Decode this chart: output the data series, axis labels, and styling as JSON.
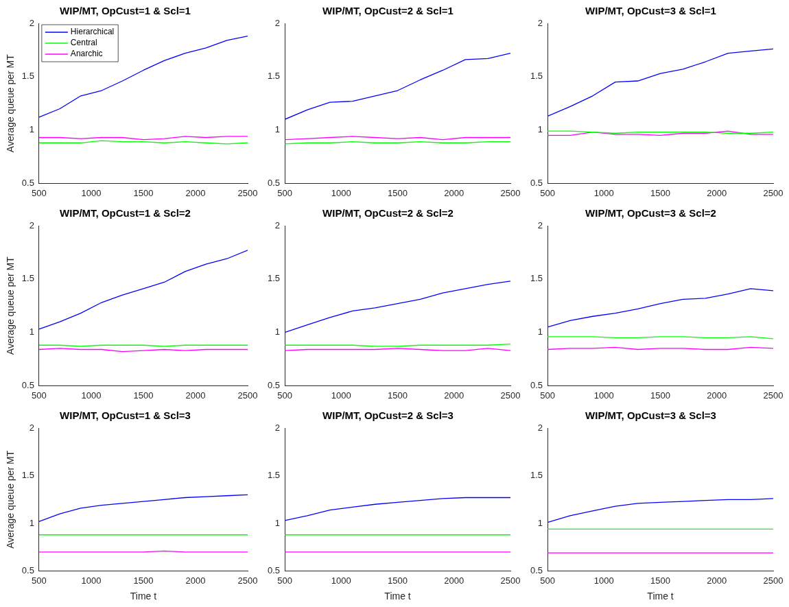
{
  "chart_data": [
    {
      "type": "line",
      "title": "WIP/MT, OpCust=1 & Scl=1",
      "ylabel": "Average queue per MT",
      "x": [
        500,
        700,
        900,
        1100,
        1300,
        1500,
        1700,
        1900,
        2100,
        2300,
        2500
      ],
      "xlim": [
        500,
        2500
      ],
      "xticks": [
        500,
        1000,
        1500,
        2000,
        2500
      ],
      "ylim": [
        0.5,
        2
      ],
      "yticks": [
        0.5,
        1,
        1.5,
        2
      ],
      "legend": "top left",
      "series": [
        {
          "name": "Hierarchical",
          "color": "#0000ff",
          "values": [
            1.12,
            1.2,
            1.32,
            1.37,
            1.46,
            1.56,
            1.65,
            1.72,
            1.77,
            1.84,
            1.88
          ]
        },
        {
          "name": "Central",
          "color": "#00ff00",
          "values": [
            0.88,
            0.88,
            0.88,
            0.9,
            0.89,
            0.89,
            0.88,
            0.89,
            0.88,
            0.87,
            0.88
          ]
        },
        {
          "name": "Anarchic",
          "color": "#ff00ff",
          "values": [
            0.93,
            0.93,
            0.92,
            0.93,
            0.93,
            0.91,
            0.92,
            0.94,
            0.93,
            0.94,
            0.94
          ]
        }
      ]
    },
    {
      "type": "line",
      "title": "WIP/MT, OpCust=2 & Scl=1",
      "x": [
        500,
        700,
        900,
        1100,
        1300,
        1500,
        1700,
        1900,
        2100,
        2300,
        2500
      ],
      "xlim": [
        500,
        2500
      ],
      "xticks": [
        500,
        1000,
        1500,
        2000,
        2500
      ],
      "ylim": [
        0.5,
        2
      ],
      "yticks": [
        0.5,
        1,
        1.5,
        2
      ],
      "series": [
        {
          "color": "#0000ff",
          "values": [
            1.1,
            1.19,
            1.26,
            1.27,
            1.32,
            1.37,
            1.47,
            1.56,
            1.66,
            1.67,
            1.72
          ]
        },
        {
          "color": "#00ff00",
          "values": [
            0.87,
            0.88,
            0.88,
            0.89,
            0.88,
            0.88,
            0.89,
            0.88,
            0.88,
            0.89,
            0.89
          ]
        },
        {
          "color": "#ff00ff",
          "values": [
            0.91,
            0.92,
            0.93,
            0.94,
            0.93,
            0.92,
            0.93,
            0.91,
            0.93,
            0.93,
            0.93
          ]
        }
      ]
    },
    {
      "type": "line",
      "title": "WIP/MT, OpCust=3 & Scl=1",
      "x": [
        500,
        700,
        900,
        1100,
        1300,
        1500,
        1700,
        1900,
        2100,
        2300,
        2500
      ],
      "xlim": [
        500,
        2500
      ],
      "xticks": [
        500,
        1000,
        1500,
        2000,
        2500
      ],
      "ylim": [
        0.5,
        2
      ],
      "yticks": [
        0.5,
        1,
        1.5,
        2
      ],
      "series": [
        {
          "color": "#0000ff",
          "values": [
            1.13,
            1.22,
            1.32,
            1.45,
            1.46,
            1.53,
            1.57,
            1.64,
            1.72,
            1.74,
            1.76
          ]
        },
        {
          "color": "#00ff00",
          "values": [
            0.99,
            0.99,
            0.98,
            0.97,
            0.98,
            0.98,
            0.98,
            0.98,
            0.97,
            0.97,
            0.98
          ]
        },
        {
          "color": "#ff00ff",
          "values": [
            0.95,
            0.95,
            0.98,
            0.96,
            0.96,
            0.95,
            0.97,
            0.97,
            0.99,
            0.96,
            0.96
          ]
        }
      ]
    },
    {
      "type": "line",
      "title": "WIP/MT, OpCust=1 & Scl=2",
      "ylabel": "Average queue per MT",
      "x": [
        500,
        700,
        900,
        1100,
        1300,
        1500,
        1700,
        1900,
        2100,
        2300,
        2500
      ],
      "xlim": [
        500,
        2500
      ],
      "xticks": [
        500,
        1000,
        1500,
        2000,
        2500
      ],
      "ylim": [
        0.5,
        2
      ],
      "yticks": [
        0.5,
        1,
        1.5,
        2
      ],
      "series": [
        {
          "color": "#0000ff",
          "values": [
            1.03,
            1.1,
            1.18,
            1.28,
            1.35,
            1.41,
            1.47,
            1.57,
            1.64,
            1.69,
            1.77
          ]
        },
        {
          "color": "#00ff00",
          "values": [
            0.88,
            0.88,
            0.87,
            0.88,
            0.88,
            0.88,
            0.87,
            0.88,
            0.88,
            0.88,
            0.88
          ]
        },
        {
          "color": "#ff00ff",
          "values": [
            0.84,
            0.85,
            0.84,
            0.84,
            0.82,
            0.83,
            0.84,
            0.83,
            0.84,
            0.84,
            0.84
          ]
        }
      ]
    },
    {
      "type": "line",
      "title": "WIP/MT, OpCust=2 & Scl=2",
      "x": [
        500,
        700,
        900,
        1100,
        1300,
        1500,
        1700,
        1900,
        2100,
        2300,
        2500
      ],
      "xlim": [
        500,
        2500
      ],
      "xticks": [
        500,
        1000,
        1500,
        2000,
        2500
      ],
      "ylim": [
        0.5,
        2
      ],
      "yticks": [
        0.5,
        1,
        1.5,
        2
      ],
      "series": [
        {
          "color": "#0000ff",
          "values": [
            1.0,
            1.07,
            1.14,
            1.2,
            1.23,
            1.27,
            1.31,
            1.37,
            1.41,
            1.45,
            1.48
          ]
        },
        {
          "color": "#00ff00",
          "values": [
            0.88,
            0.88,
            0.88,
            0.88,
            0.87,
            0.87,
            0.88,
            0.88,
            0.88,
            0.88,
            0.89
          ]
        },
        {
          "color": "#ff00ff",
          "values": [
            0.83,
            0.84,
            0.84,
            0.84,
            0.84,
            0.85,
            0.84,
            0.83,
            0.83,
            0.85,
            0.83
          ]
        }
      ]
    },
    {
      "type": "line",
      "title": "WIP/MT, OpCust=3 & Scl=2",
      "x": [
        500,
        700,
        900,
        1100,
        1300,
        1500,
        1700,
        1900,
        2100,
        2300,
        2500
      ],
      "xlim": [
        500,
        2500
      ],
      "xticks": [
        500,
        1000,
        1500,
        2000,
        2500
      ],
      "ylim": [
        0.5,
        2
      ],
      "yticks": [
        0.5,
        1,
        1.5,
        2
      ],
      "series": [
        {
          "color": "#0000ff",
          "values": [
            1.05,
            1.11,
            1.15,
            1.18,
            1.22,
            1.27,
            1.31,
            1.32,
            1.36,
            1.41,
            1.39
          ]
        },
        {
          "color": "#00ff00",
          "values": [
            0.96,
            0.96,
            0.96,
            0.95,
            0.95,
            0.96,
            0.96,
            0.95,
            0.95,
            0.96,
            0.94
          ]
        },
        {
          "color": "#ff00ff",
          "values": [
            0.84,
            0.85,
            0.85,
            0.86,
            0.84,
            0.85,
            0.85,
            0.84,
            0.84,
            0.86,
            0.85
          ]
        }
      ]
    },
    {
      "type": "line",
      "title": "WIP/MT, OpCust=1 & Scl=3",
      "xlabel": "Time t",
      "ylabel": "Average queue per MT",
      "x": [
        500,
        700,
        900,
        1100,
        1300,
        1500,
        1700,
        1900,
        2100,
        2300,
        2500
      ],
      "xlim": [
        500,
        2500
      ],
      "xticks": [
        500,
        1000,
        1500,
        2000,
        2500
      ],
      "ylim": [
        0.5,
        2
      ],
      "yticks": [
        0.5,
        1,
        1.5,
        2
      ],
      "series": [
        {
          "color": "#0000ff",
          "values": [
            1.02,
            1.1,
            1.16,
            1.19,
            1.21,
            1.23,
            1.25,
            1.27,
            1.28,
            1.29,
            1.3
          ]
        },
        {
          "color": "#00ff00",
          "values": [
            0.88,
            0.88,
            0.88,
            0.88,
            0.88,
            0.88,
            0.88,
            0.88,
            0.88,
            0.88,
            0.88
          ]
        },
        {
          "color": "#ff00ff",
          "values": [
            0.7,
            0.7,
            0.7,
            0.7,
            0.7,
            0.7,
            0.71,
            0.7,
            0.7,
            0.7,
            0.7
          ]
        }
      ]
    },
    {
      "type": "line",
      "title": "WIP/MT, OpCust=2 & Scl=3",
      "xlabel": "Time t",
      "x": [
        500,
        700,
        900,
        1100,
        1300,
        1500,
        1700,
        1900,
        2100,
        2300,
        2500
      ],
      "xlim": [
        500,
        2500
      ],
      "xticks": [
        500,
        1000,
        1500,
        2000,
        2500
      ],
      "ylim": [
        0.5,
        2
      ],
      "yticks": [
        0.5,
        1,
        1.5,
        2
      ],
      "series": [
        {
          "color": "#0000ff",
          "values": [
            1.03,
            1.08,
            1.14,
            1.17,
            1.2,
            1.22,
            1.24,
            1.26,
            1.27,
            1.27,
            1.27
          ]
        },
        {
          "color": "#00ff00",
          "values": [
            0.88,
            0.88,
            0.88,
            0.88,
            0.88,
            0.88,
            0.88,
            0.88,
            0.88,
            0.88,
            0.88
          ]
        },
        {
          "color": "#ff00ff",
          "values": [
            0.7,
            0.7,
            0.7,
            0.7,
            0.7,
            0.7,
            0.7,
            0.7,
            0.7,
            0.7,
            0.7
          ]
        }
      ]
    },
    {
      "type": "line",
      "title": "WIP/MT, OpCust=3 & Scl=3",
      "xlabel": "Time t",
      "x": [
        500,
        700,
        900,
        1100,
        1300,
        1500,
        1700,
        1900,
        2100,
        2300,
        2500
      ],
      "xlim": [
        500,
        2500
      ],
      "xticks": [
        500,
        1000,
        1500,
        2000,
        2500
      ],
      "ylim": [
        0.5,
        2
      ],
      "yticks": [
        0.5,
        1,
        1.5,
        2
      ],
      "series": [
        {
          "color": "#0000ff",
          "values": [
            1.01,
            1.08,
            1.13,
            1.18,
            1.21,
            1.22,
            1.23,
            1.24,
            1.25,
            1.25,
            1.26
          ]
        },
        {
          "color": "#00ff00",
          "values": [
            0.94,
            0.94,
            0.94,
            0.94,
            0.94,
            0.94,
            0.94,
            0.94,
            0.94,
            0.94,
            0.94
          ]
        },
        {
          "color": "#ff00ff",
          "values": [
            0.69,
            0.69,
            0.69,
            0.69,
            0.69,
            0.69,
            0.69,
            0.69,
            0.69,
            0.69,
            0.69
          ]
        }
      ]
    }
  ]
}
